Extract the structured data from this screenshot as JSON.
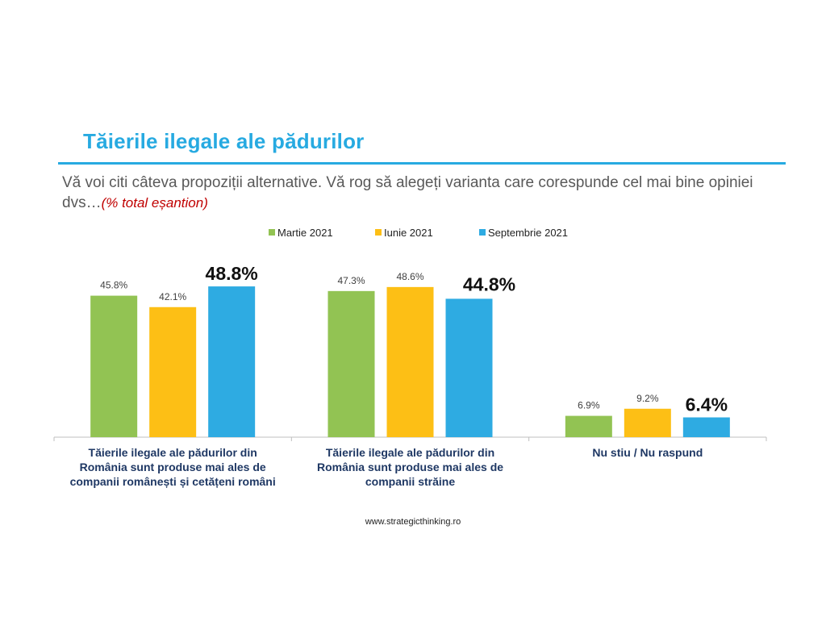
{
  "header": {
    "title": "Tăierile ilegale ale pădurilor",
    "question": "Vă voi citi câteva propoziții alternative. Vă rog să alegeți varianta care corespunde cel mai bine opiniei dvs…",
    "question_note": "(% total eșantion)"
  },
  "footer": {
    "website": "www.strategicthinking.ro"
  },
  "colors": {
    "accent": "#27aae1",
    "series": [
      "#92c353",
      "#fdbf15",
      "#2eabe2"
    ],
    "note": "#c00000"
  },
  "chart_data": {
    "type": "bar",
    "categories": [
      [
        "Tăierile ilegale ale pădurilor din",
        "România sunt produse mai ales de",
        "companii românești și cetățeni români"
      ],
      [
        "Tăierile ilegale ale pădurilor din",
        "România sunt produse mai ales de",
        "companii străine"
      ],
      [
        "Nu stiu / Nu raspund"
      ]
    ],
    "series": [
      {
        "name": "Martie 2021",
        "values": [
          45.8,
          47.3,
          6.9
        ],
        "labels": [
          "45.8%",
          "47.3%",
          "6.9%"
        ]
      },
      {
        "name": "Iunie 2021",
        "values": [
          42.1,
          48.6,
          9.2
        ],
        "labels": [
          "42.1%",
          "48.6%",
          "9.2%"
        ]
      },
      {
        "name": "Septembrie 2021",
        "values": [
          48.8,
          44.8,
          6.4
        ],
        "labels": [
          "48.8%",
          "44.8%",
          "6.4%"
        ]
      }
    ],
    "highlight_series": "Septembrie 2021",
    "legend_position": "top-center",
    "grid": false,
    "ylim": [
      0,
      50
    ]
  }
}
